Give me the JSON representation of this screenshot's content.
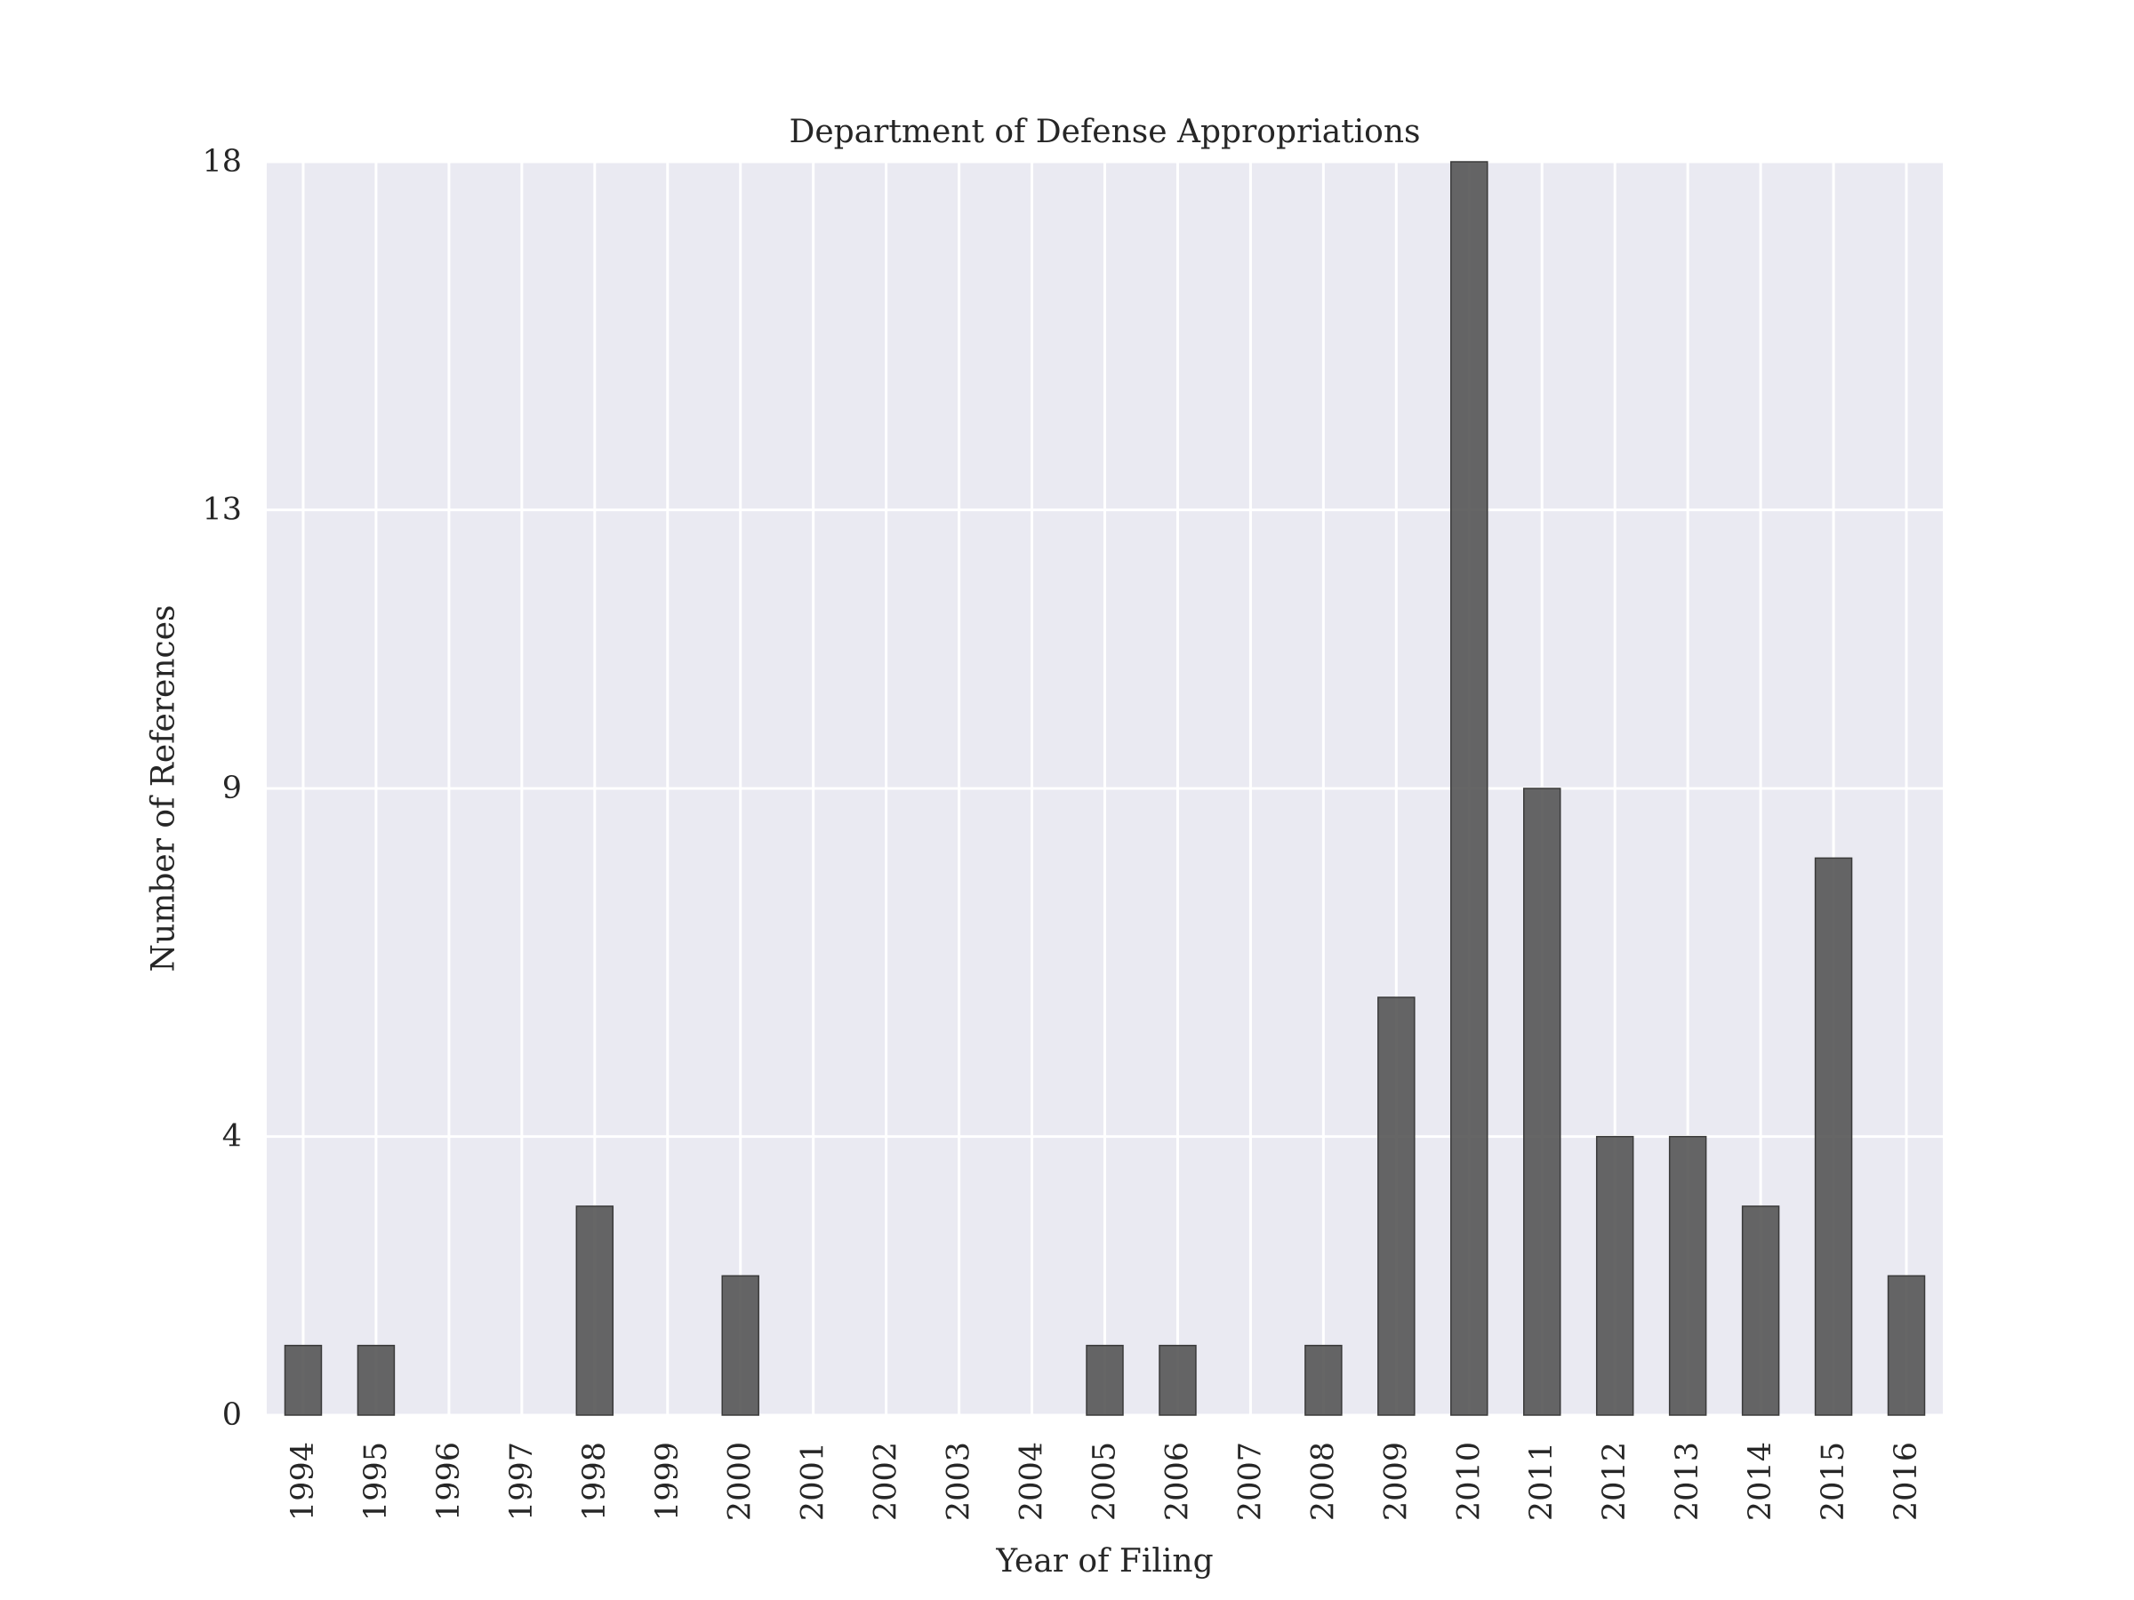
{
  "chart_data": {
    "type": "bar",
    "title": "Department of Defense Appropriations",
    "xlabel": "Year of Filing",
    "ylabel": "Number of References",
    "categories": [
      "1994",
      "1995",
      "1996",
      "1997",
      "1998",
      "1999",
      "2000",
      "2001",
      "2002",
      "2003",
      "2004",
      "2005",
      "2006",
      "2007",
      "2008",
      "2009",
      "2010",
      "2011",
      "2012",
      "2013",
      "2014",
      "2015",
      "2016"
    ],
    "values": [
      1,
      1,
      0,
      0,
      3,
      0,
      2,
      0,
      0,
      0,
      0,
      1,
      1,
      0,
      1,
      6,
      18,
      9,
      4,
      4,
      3,
      8,
      2
    ],
    "ylim": [
      0,
      18
    ],
    "yticks": [
      0,
      4,
      9,
      13,
      18
    ],
    "grid": true,
    "legend": "none",
    "colors": {
      "bar": "#555555",
      "bar_edge": "#3a3a3a",
      "plot_background": "#eaeaf2",
      "grid": "#ffffff",
      "text": "#262626"
    }
  }
}
